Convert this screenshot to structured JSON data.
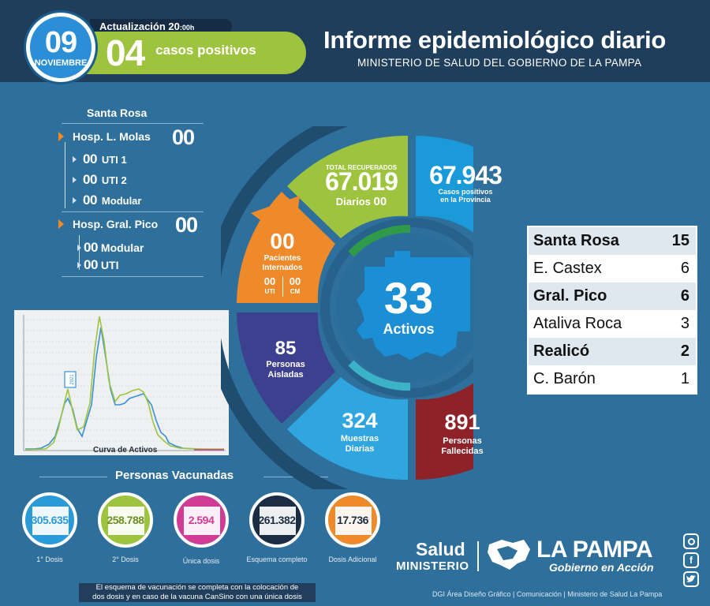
{
  "header": {
    "day": "09",
    "month": "NOVIEMBRE",
    "update_label": "Actualización 20",
    "update_time": ":00h",
    "new_cases": "04",
    "new_cases_label": "casos positivos",
    "title": "Informe epidemiológico diario",
    "subtitle": "MINISTERIO DE SALUD DEL GOBIERNO DE LA PAMPA"
  },
  "hospitals": {
    "city": "Santa Rosa",
    "molas": {
      "label": "Hosp. L. Molas",
      "value": "00",
      "items": [
        {
          "num": "00",
          "label": "UTI 1"
        },
        {
          "num": "00",
          "label": "UTI 2"
        },
        {
          "num": "00",
          "label": "Modular"
        }
      ]
    },
    "pico": {
      "label": "Hosp. Gral. Pico",
      "value": "00",
      "items": [
        {
          "num": "00",
          "label": "Modular"
        },
        {
          "num": "00",
          "label": "UTI"
        }
      ]
    }
  },
  "wheel": {
    "recovered": {
      "heading": "TOTAL RECUPERADOS",
      "value": "67.019",
      "daily_label": "Diarios",
      "daily_value": "00"
    },
    "positives": {
      "value": "67.943",
      "label_1": "Casos positivos",
      "label_2": "en la Provincia"
    },
    "hospitalized": {
      "value": "00",
      "label_1": "Pacientes",
      "label_2": "Internados",
      "uti_value": "00",
      "uti_label": "UTI",
      "cm_value": "00",
      "cm_label": "CM"
    },
    "active": {
      "value": "33",
      "label": "Activos"
    },
    "isolated": {
      "value": "85",
      "label_1": "Personas",
      "label_2": "Aisladas"
    },
    "samples": {
      "value": "324",
      "label_1": "Muestras",
      "label_2": "Diarias"
    },
    "deceased": {
      "value": "891",
      "label_1": "Personas",
      "label_2": "Fallecidas"
    },
    "colors": {
      "green": "#9ec43f",
      "blue": "#1a9ad9",
      "orange": "#ef8a2b",
      "purple": "#3d3f8f",
      "lightblue": "#2fa6e0",
      "red": "#8e2229"
    }
  },
  "locations": [
    {
      "name": "Santa Rosa",
      "count": "15",
      "bold": true
    },
    {
      "name": "E. Castex",
      "count": "6",
      "bold": false
    },
    {
      "name": "Gral. Pico",
      "count": "6",
      "bold": true
    },
    {
      "name": "Ataliva Roca",
      "count": "3",
      "bold": false
    },
    {
      "name": "Realicó",
      "count": "2",
      "bold": true
    },
    {
      "name": "C. Barón",
      "count": "1",
      "bold": false
    }
  ],
  "chart": {
    "caption": "Curva de Activos",
    "callout": "2021",
    "colors": {
      "blue": "#3a8fd8",
      "green": "#9ec43f"
    }
  },
  "vaccines": {
    "title": "Personas Vacunadas",
    "items": [
      {
        "value": "305.635",
        "label": "1° Dosis",
        "color": "#2a9ad8"
      },
      {
        "value": "258.788",
        "label": "2° Dosis",
        "color": "#9ec43f"
      },
      {
        "value": "2.594",
        "label": "Única dosis",
        "color": "#d03c93"
      },
      {
        "value": "261.382",
        "label": "Esquema completo",
        "color": "#1c2d43"
      },
      {
        "value": "17.736",
        "label": "Dosis Adicional",
        "color": "#ef8a2b"
      }
    ],
    "footnote_1": "El esquema de vacunación se completa con la colocación de",
    "footnote_2": "dos dosis y en caso de la vacuna CanSino con una única dosis"
  },
  "footer": {
    "salud": "Salud",
    "ministerio": "MINISTERIO",
    "lapampa": "LA PAMPA",
    "gobierno": "Gobierno en Acción",
    "credits": "DGI Área Diseño Gráfico  | Comunicación  | Ministerio de Salud La Pampa",
    "social": [
      "instagram-icon",
      "facebook-icon",
      "twitter-icon"
    ]
  }
}
